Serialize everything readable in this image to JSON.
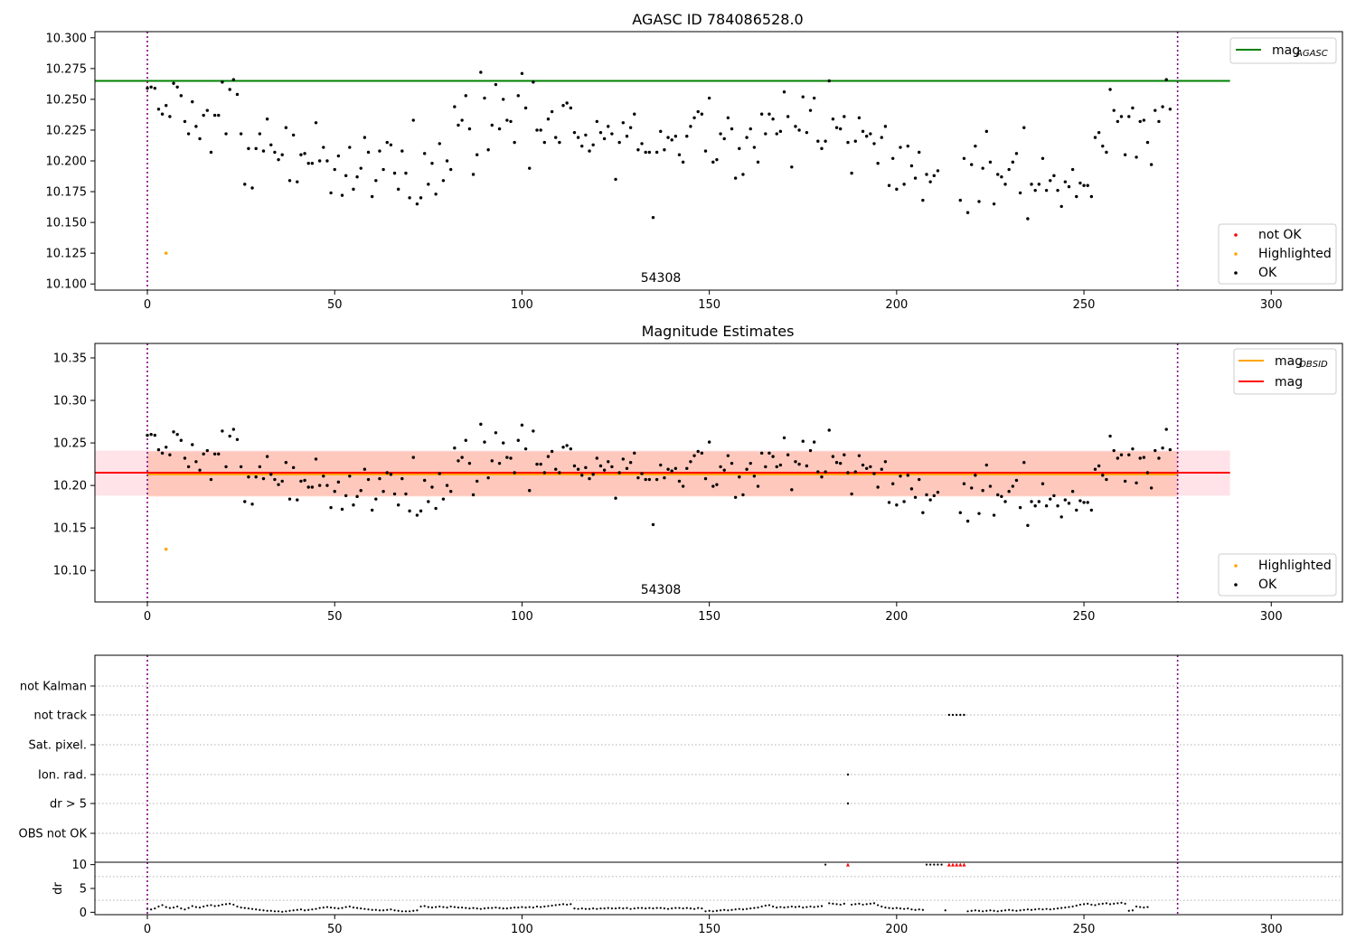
{
  "chart_data": [
    {
      "type": "scatter",
      "title": "AGASC ID 784086528.0",
      "xlim": [
        -14,
        319
      ],
      "ylim": [
        10.095,
        10.305
      ],
      "x_ticks": [
        0,
        50,
        100,
        150,
        200,
        250,
        300
      ],
      "x_tick_labels": [
        "0",
        "50",
        "100",
        "150",
        "200",
        "250",
        "300"
      ],
      "y_ticks": [
        10.1,
        10.125,
        10.15,
        10.175,
        10.2,
        10.225,
        10.25,
        10.275,
        10.3
      ],
      "y_tick_labels": [
        "10.100",
        "10.125",
        "10.150",
        "10.175",
        "10.200",
        "10.225",
        "10.250",
        "10.275",
        "10.300"
      ],
      "hlines": [
        {
          "label": "mag",
          "label_sub": "AGASC",
          "y": 10.265,
          "x_range": [
            -14,
            289
          ],
          "color": "#008000"
        }
      ],
      "vlines": [
        0,
        275
      ],
      "annotation": "54308",
      "legend_lines": [
        {
          "label": "mag",
          "sub": "AGASC",
          "color": "#008000"
        }
      ],
      "legend_markers": [
        {
          "label": "not OK",
          "color": "#ff0000"
        },
        {
          "label": "Highlighted",
          "color": "#ffa500"
        },
        {
          "label": "OK",
          "color": "#000000"
        }
      ],
      "highlighted": [
        {
          "x": 5,
          "y": 10.125
        }
      ]
    },
    {
      "type": "scatter",
      "title": "Magnitude Estimates",
      "xlim": [
        -14,
        319
      ],
      "ylim": [
        10.063,
        10.367
      ],
      "x_ticks": [
        0,
        50,
        100,
        150,
        200,
        250,
        300
      ],
      "x_tick_labels": [
        "0",
        "50",
        "100",
        "150",
        "200",
        "250",
        "300"
      ],
      "y_ticks": [
        10.1,
        10.15,
        10.2,
        10.25,
        10.3,
        10.35
      ],
      "y_tick_labels": [
        "10.10",
        "10.15",
        "10.20",
        "10.25",
        "10.30",
        "10.35"
      ],
      "mag_obsid": {
        "label": "mag",
        "sub": "OBSID",
        "y": 10.213,
        "band": [
          10.187,
          10.24
        ],
        "x_range": [
          0,
          275
        ],
        "color": "#ffa500"
      },
      "mag": {
        "label": "mag",
        "y": 10.215,
        "band": [
          10.188,
          10.241
        ],
        "x_range": [
          -14,
          289
        ],
        "color": "#ff0000"
      },
      "vlines": [
        0,
        275
      ],
      "annotation": "54308",
      "legend_lines": [
        {
          "label": "mag",
          "sub": "OBSID",
          "color": "#ffa500"
        },
        {
          "label": "mag",
          "sub": "",
          "color": "#ff0000"
        }
      ],
      "legend_markers": [
        {
          "label": "Highlighted",
          "color": "#ffa500"
        },
        {
          "label": "OK",
          "color": "#000000"
        }
      ],
      "highlighted": [
        {
          "x": 5,
          "y": 10.125
        }
      ]
    },
    {
      "type": "scatter",
      "title": "",
      "xlim": [
        -14,
        319
      ],
      "categories": [
        "not Kalman",
        "not track",
        "Sat. pixel.",
        "Ion. rad.",
        "dr > 5",
        "OBS not OK"
      ],
      "flags": {
        "not Kalman": [],
        "not track": [
          214,
          215,
          216,
          217,
          218
        ],
        "Sat. pixel.": [],
        "Ion. rad.": [
          187
        ],
        "dr > 5": [
          187
        ],
        "OBS not OK": []
      },
      "vlines": [
        0,
        275
      ]
    },
    {
      "type": "scatter",
      "title": "",
      "xlim": [
        -14,
        319
      ],
      "ylim": [
        -0.5,
        10.5
      ],
      "ylabel": "dr",
      "x_ticks": [
        0,
        50,
        100,
        150,
        200,
        250,
        300
      ],
      "x_tick_labels": [
        "0",
        "50",
        "100",
        "150",
        "200",
        "250",
        "300"
      ],
      "y_ticks": [
        0,
        5,
        10
      ],
      "y_tick_labels": [
        "0",
        "5",
        "10"
      ],
      "clipped": [
        187,
        214,
        215,
        216,
        217,
        218
      ],
      "clip_value": 10,
      "vlines": [
        0,
        275
      ]
    }
  ],
  "mag_series": [
    10.259,
    10.26,
    10.259,
    10.242,
    10.238,
    10.245,
    10.236,
    10.263,
    10.26,
    10.253,
    10.232,
    10.222,
    10.248,
    10.228,
    10.218,
    10.237,
    10.241,
    10.207,
    10.237,
    10.237,
    10.264,
    10.222,
    10.258,
    10.266,
    10.254,
    10.222,
    10.181,
    10.21,
    10.178,
    10.21,
    10.222,
    10.208,
    10.234,
    10.213,
    10.207,
    10.201,
    10.205,
    10.227,
    10.184,
    10.221,
    10.183,
    10.205,
    10.206,
    10.198,
    10.198,
    10.231,
    10.2,
    10.211,
    10.2,
    10.174,
    10.193,
    10.204,
    10.172,
    10.188,
    10.211,
    10.177,
    10.187,
    10.194,
    10.219,
    10.207,
    10.171,
    10.184,
    10.208,
    10.193,
    10.215,
    10.213,
    10.19,
    10.177,
    10.208,
    10.19,
    10.17,
    10.233,
    10.165,
    10.17,
    10.206,
    10.181,
    10.198,
    10.173,
    10.214,
    10.184,
    10.2,
    10.193,
    10.244,
    10.229,
    10.233,
    10.253,
    10.226,
    10.189,
    10.205,
    10.272,
    10.251,
    10.209,
    10.229,
    10.262,
    10.226,
    10.25,
    10.233,
    10.232,
    10.215,
    10.253,
    10.271,
    10.243,
    10.194,
    10.264,
    10.225,
    10.225,
    10.215,
    10.234,
    10.24,
    10.219,
    10.215,
    10.245,
    10.247,
    10.243,
    10.223,
    10.219,
    10.212,
    10.221,
    10.208,
    10.213,
    10.232,
    10.223,
    10.218,
    10.228,
    10.222,
    10.185,
    10.215,
    10.231,
    10.22,
    10.227,
    10.238,
    10.209,
    10.214,
    10.207,
    10.207,
    10.154,
    10.207,
    10.224,
    10.209,
    10.219,
    10.217,
    10.22,
    10.205,
    10.199,
    10.22,
    10.228,
    10.235,
    10.24,
    10.238,
    10.208,
    10.251,
    10.199,
    10.201,
    10.222,
    10.218,
    10.235,
    10.226,
    10.186,
    10.21,
    10.189,
    10.219,
    10.226,
    10.211,
    10.199,
    10.238,
    10.222,
    10.238,
    10.234,
    10.222,
    10.224,
    10.256,
    10.236,
    10.195,
    10.228,
    10.225,
    10.252,
    10.223,
    10.241,
    10.251,
    10.216,
    10.21,
    10.216,
    10.265,
    10.234,
    10.227,
    10.226,
    10.236,
    10.215,
    10.19,
    10.216,
    10.235,
    10.224,
    10.22,
    10.222,
    10.214,
    10.198,
    10.219,
    10.228,
    10.18,
    10.202,
    10.177,
    10.211,
    10.181,
    10.212,
    10.196,
    10.186,
    10.207,
    10.168,
    10.189,
    10.183,
    10.188,
    10.192,
    null,
    null,
    null,
    null,
    null,
    10.168,
    10.202,
    10.158,
    10.197,
    10.212,
    10.167,
    10.194,
    10.224,
    10.199,
    10.165,
    10.189,
    10.187,
    10.181,
    10.193,
    10.199,
    10.206,
    10.174,
    10.227,
    10.153,
    10.181,
    10.176,
    10.181,
    10.202,
    10.176,
    10.184,
    10.188,
    10.176,
    10.163,
    10.183,
    10.179,
    10.193,
    10.171,
    10.182,
    10.18,
    10.18,
    10.171,
    10.219,
    10.223,
    10.212,
    10.207,
    10.258,
    10.241,
    10.232,
    10.236,
    10.205,
    10.236,
    10.243,
    10.203,
    10.232,
    10.233,
    10.215,
    10.197,
    10.241,
    10.232,
    10.244,
    10.266,
    10.242
  ],
  "dr_series": [
    0.7,
    0.6,
    0.8,
    1.2,
    1.5,
    1.1,
    0.9,
    1.0,
    1.2,
    0.8,
    0.6,
    0.9,
    1.3,
    1.1,
    1.0,
    1.2,
    1.4,
    1.5,
    1.3,
    1.4,
    1.6,
    1.7,
    1.8,
    1.6,
    1.2,
    1.0,
    0.9,
    0.8,
    0.7,
    0.6,
    0.5,
    0.4,
    0.3,
    0.3,
    0.2,
    0.2,
    0.1,
    0.2,
    0.3,
    0.4,
    0.5,
    0.6,
    0.4,
    0.5,
    0.6,
    0.7,
    0.9,
    1.0,
    1.1,
    1.0,
    0.9,
    0.8,
    0.9,
    1.1,
    1.2,
    1.0,
    0.9,
    0.8,
    0.7,
    0.6,
    0.5,
    0.5,
    0.4,
    0.4,
    0.5,
    0.6,
    0.4,
    0.3,
    0.2,
    0.2,
    0.2,
    0.3,
    0.4,
    1.2,
    1.3,
    1.1,
    1.0,
    1.1,
    1.2,
    1.1,
    1.0,
    1.2,
    1.1,
    1.0,
    1.0,
    0.9,
    0.8,
    0.9,
    0.8,
    0.7,
    0.8,
    0.9,
    0.9,
    1.0,
    0.9,
    0.8,
    0.8,
    0.9,
    1.0,
    1.0,
    1.1,
    1.0,
    1.1,
    1.0,
    1.2,
    1.1,
    1.2,
    1.3,
    1.4,
    1.5,
    1.6,
    1.7,
    1.6,
    1.7,
    0.8,
    0.7,
    0.8,
    0.7,
    0.7,
    0.8,
    0.7,
    0.8,
    0.8,
    0.9,
    0.8,
    0.8,
    0.9,
    0.8,
    0.9,
    0.7,
    0.8,
    0.9,
    0.9,
    0.8,
    0.9,
    0.8,
    0.9,
    0.9,
    0.8,
    0.7,
    0.8,
    0.9,
    0.9,
    0.8,
    0.9,
    0.8,
    0.7,
    0.9,
    0.8,
    0.2,
    0.3,
    0.2,
    0.3,
    0.4,
    0.5,
    0.4,
    0.5,
    0.6,
    0.7,
    0.6,
    0.7,
    0.8,
    0.9,
    1.0,
    1.2,
    1.4,
    1.5,
    1.2,
    1.0,
    1.1,
    1.0,
    1.1,
    1.2,
    1.1,
    1.2,
    1.0,
    1.1,
    1.2,
    1.1,
    1.2,
    1.3,
    10,
    1.9,
    1.8,
    1.7,
    1.6,
    1.8,
    1.7,
    1.6,
    1.7,
    1.8,
    1.6,
    1.7,
    1.8,
    1.9,
    1.5,
    1.2,
    1.0,
    0.9,
    0.8,
    0.9,
    0.8,
    0.7,
    0.8,
    0.6,
    0.5,
    0.6,
    0.5,
    10,
    10,
    10,
    10,
    10,
    0.4,
    0.3,
    0.4,
    0.3,
    0.4,
    0.3,
    0.2,
    0.3,
    0.4,
    0.3,
    0.2,
    0.3,
    0.4,
    0.3,
    0.2,
    0.3,
    0.4,
    0.5,
    0.4,
    0.3,
    0.4,
    0.5,
    0.6,
    0.5,
    0.6,
    0.7,
    0.6,
    0.7,
    0.6,
    0.7,
    0.8,
    0.9,
    1.0,
    1.1,
    1.2,
    1.4,
    1.6,
    1.7,
    1.8,
    1.6,
    1.5,
    1.7,
    1.8,
    1.9,
    1.7,
    1.8,
    1.9,
    2.0,
    1.8,
    0.3,
    0.4,
    1.2,
    1.1,
    1.0,
    1.1
  ]
}
